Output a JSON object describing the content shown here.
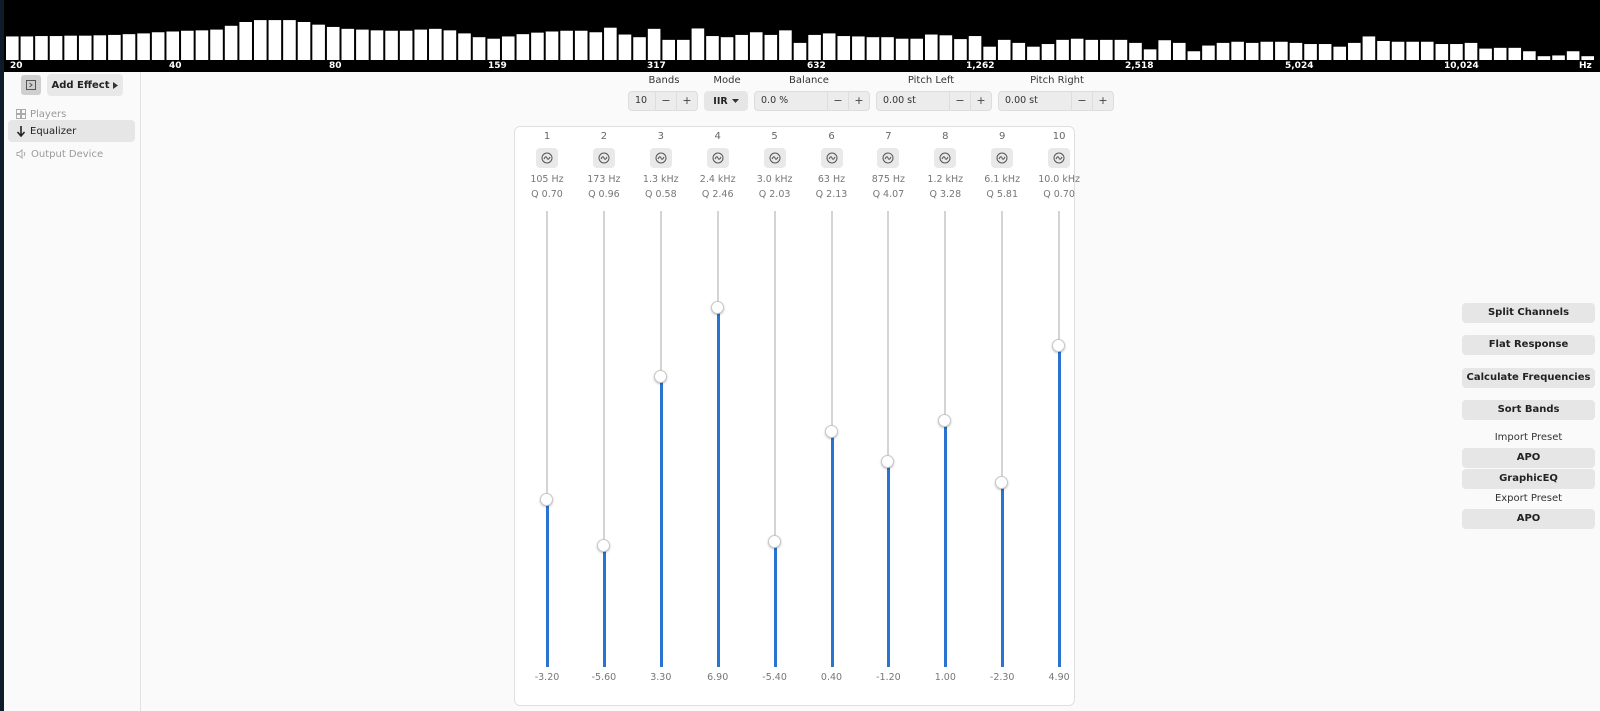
{
  "spectrum": {
    "bar_levels": [
      0.62,
      0.62,
      0.63,
      0.63,
      0.64,
      0.64,
      0.65,
      0.66,
      0.68,
      0.7,
      0.73,
      0.75,
      0.77,
      0.78,
      0.8,
      0.9,
      1.0,
      1.05,
      1.05,
      1.05,
      1.0,
      0.93,
      0.87,
      0.82,
      0.8,
      0.78,
      0.77,
      0.77,
      0.8,
      0.82,
      0.78,
      0.7,
      0.6,
      0.56,
      0.62,
      0.68,
      0.72,
      0.75,
      0.77,
      0.77,
      0.73,
      0.85,
      0.67,
      0.6,
      0.82,
      0.53,
      0.53,
      0.83,
      0.63,
      0.6,
      0.66,
      0.73,
      0.66,
      0.78,
      0.45,
      0.66,
      0.7,
      0.63,
      0.62,
      0.6,
      0.6,
      0.56,
      0.56,
      0.67,
      0.65,
      0.55,
      0.63,
      0.35,
      0.53,
      0.45,
      0.35,
      0.42,
      0.53,
      0.56,
      0.53,
      0.53,
      0.53,
      0.45,
      0.28,
      0.52,
      0.45,
      0.23,
      0.38,
      0.45,
      0.48,
      0.45,
      0.48,
      0.48,
      0.45,
      0.42,
      0.42,
      0.35,
      0.45,
      0.62,
      0.5,
      0.48,
      0.48,
      0.48,
      0.42,
      0.42,
      0.45,
      0.3,
      0.32,
      0.32,
      0.23,
      0.1,
      0.12,
      0.23,
      0.1
    ],
    "freq_labels": [
      "20",
      "40",
      "80",
      "159",
      "317",
      "632",
      "1,262",
      "2,518",
      "5,024",
      "10,024",
      "Hz"
    ]
  },
  "sidebar": {
    "add_effect_label": "Add Effect",
    "items": [
      {
        "label": "Players",
        "icon": "players-icon"
      },
      {
        "label": "Equalizer",
        "icon": "arrow-down-icon"
      },
      {
        "label": "Output Device",
        "icon": "speaker-icon"
      }
    ]
  },
  "controls": {
    "bands_label": "Bands",
    "bands_value": "10",
    "mode_label": "Mode",
    "mode_value": "IIR",
    "balance_label": "Balance",
    "balance_value": "0.0 %",
    "pitch_left_label": "Pitch Left",
    "pitch_left_value": "0.00 st",
    "pitch_right_label": "Pitch Right",
    "pitch_right_value": "0.00 st",
    "minus": "−",
    "plus": "+"
  },
  "eq": {
    "gain_range": [
      -12,
      12
    ],
    "bands": [
      {
        "index": "1",
        "freq": "105 Hz",
        "q": "Q 0.70",
        "gain_label": "-3.20"
      },
      {
        "index": "2",
        "freq": "173 Hz",
        "q": "Q 0.96",
        "gain_label": "-5.60"
      },
      {
        "index": "3",
        "freq": "1.3 kHz",
        "q": "Q 0.58",
        "gain_label": "3.30"
      },
      {
        "index": "4",
        "freq": "2.4 kHz",
        "q": "Q 2.46",
        "gain_label": "6.90"
      },
      {
        "index": "5",
        "freq": "3.0 kHz",
        "q": "Q 2.03",
        "gain_label": "-5.40"
      },
      {
        "index": "6",
        "freq": "63 Hz",
        "q": "Q 2.13",
        "gain_label": "0.40"
      },
      {
        "index": "7",
        "freq": "875 Hz",
        "q": "Q 4.07",
        "gain_label": "-1.20"
      },
      {
        "index": "8",
        "freq": "1.2 kHz",
        "q": "Q 3.28",
        "gain_label": "1.00"
      },
      {
        "index": "9",
        "freq": "6.1 kHz",
        "q": "Q 5.81",
        "gain_label": "-2.30"
      },
      {
        "index": "10",
        "freq": "10.0 kHz",
        "q": "Q 0.70",
        "gain_label": "4.90"
      }
    ]
  },
  "actions": {
    "split_channels": "Split Channels",
    "flat_response": "Flat Response",
    "calculate_frequencies": "Calculate Frequencies",
    "sort_bands": "Sort Bands",
    "import_preset_label": "Import Preset",
    "import_apo": "APO",
    "import_graphiceq": "GraphicEQ",
    "export_preset_label": "Export Preset",
    "export_apo": "APO"
  },
  "colors": {
    "accent": "#2a74d1",
    "spectrum_bg": "#000000",
    "spectrum_bar": "#ffffff"
  }
}
